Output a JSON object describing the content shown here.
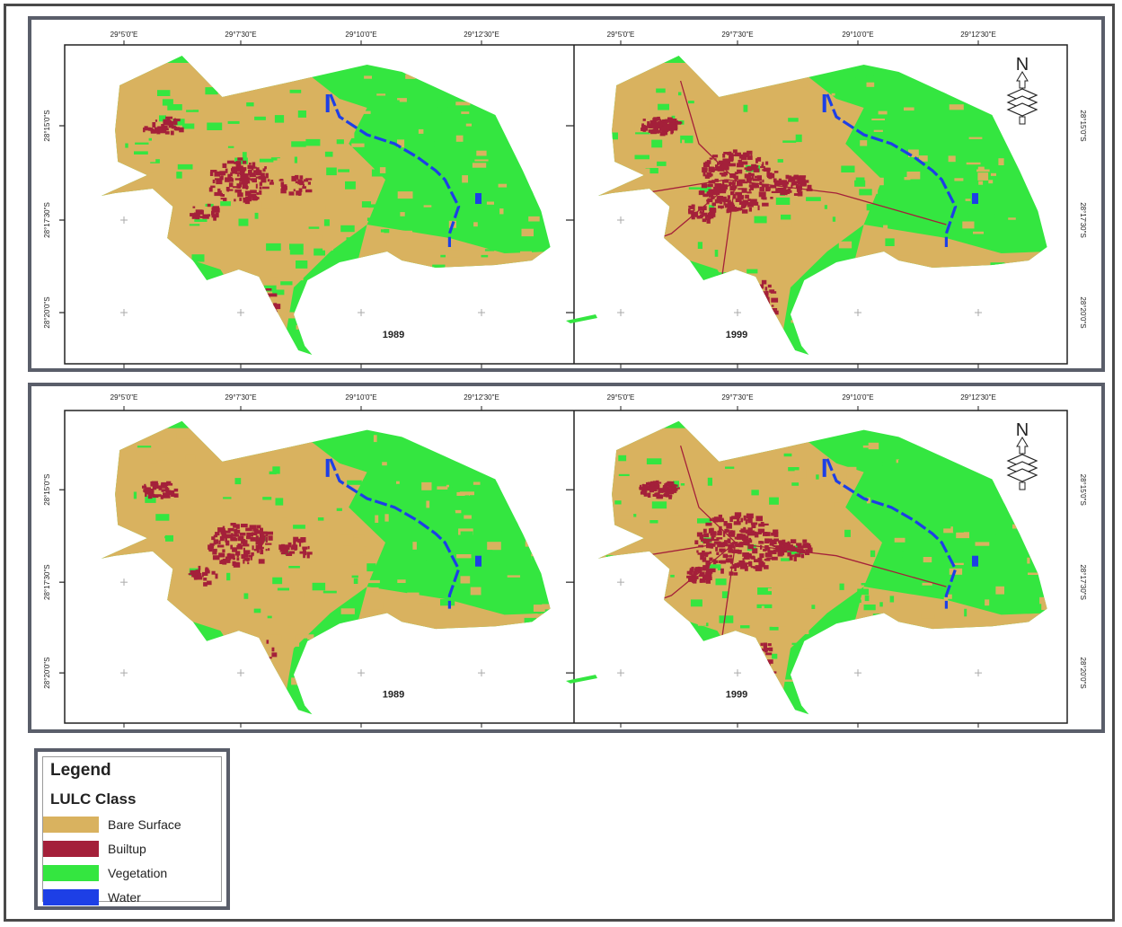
{
  "colors": {
    "bare_surface": "#d9b25f",
    "builtup": "#a4203a",
    "vegetation": "#34e640",
    "water": "#1d3fe6"
  },
  "coordinates": {
    "top_labels": [
      "29°5'0\"E",
      "29°7'30\"E",
      "29°10'0\"E",
      "29°12'30\"E"
    ],
    "side_labels": [
      "28°15'0\"S",
      "28°17'30\"S",
      "28°20'0\"S"
    ]
  },
  "panels": [
    {
      "year": "1989"
    },
    {
      "year": "1999"
    },
    {
      "year": "1989"
    },
    {
      "year": "1999"
    }
  ],
  "north_arrow": {
    "label": "N"
  },
  "legend": {
    "title": "Legend",
    "subtitle": "LULC Class",
    "items": [
      {
        "label": "Bare Surface",
        "color_key": "bare_surface"
      },
      {
        "label": "Builtup",
        "color_key": "builtup"
      },
      {
        "label": "Vegetation",
        "color_key": "vegetation"
      },
      {
        "label": "Water",
        "color_key": "water"
      }
    ]
  }
}
